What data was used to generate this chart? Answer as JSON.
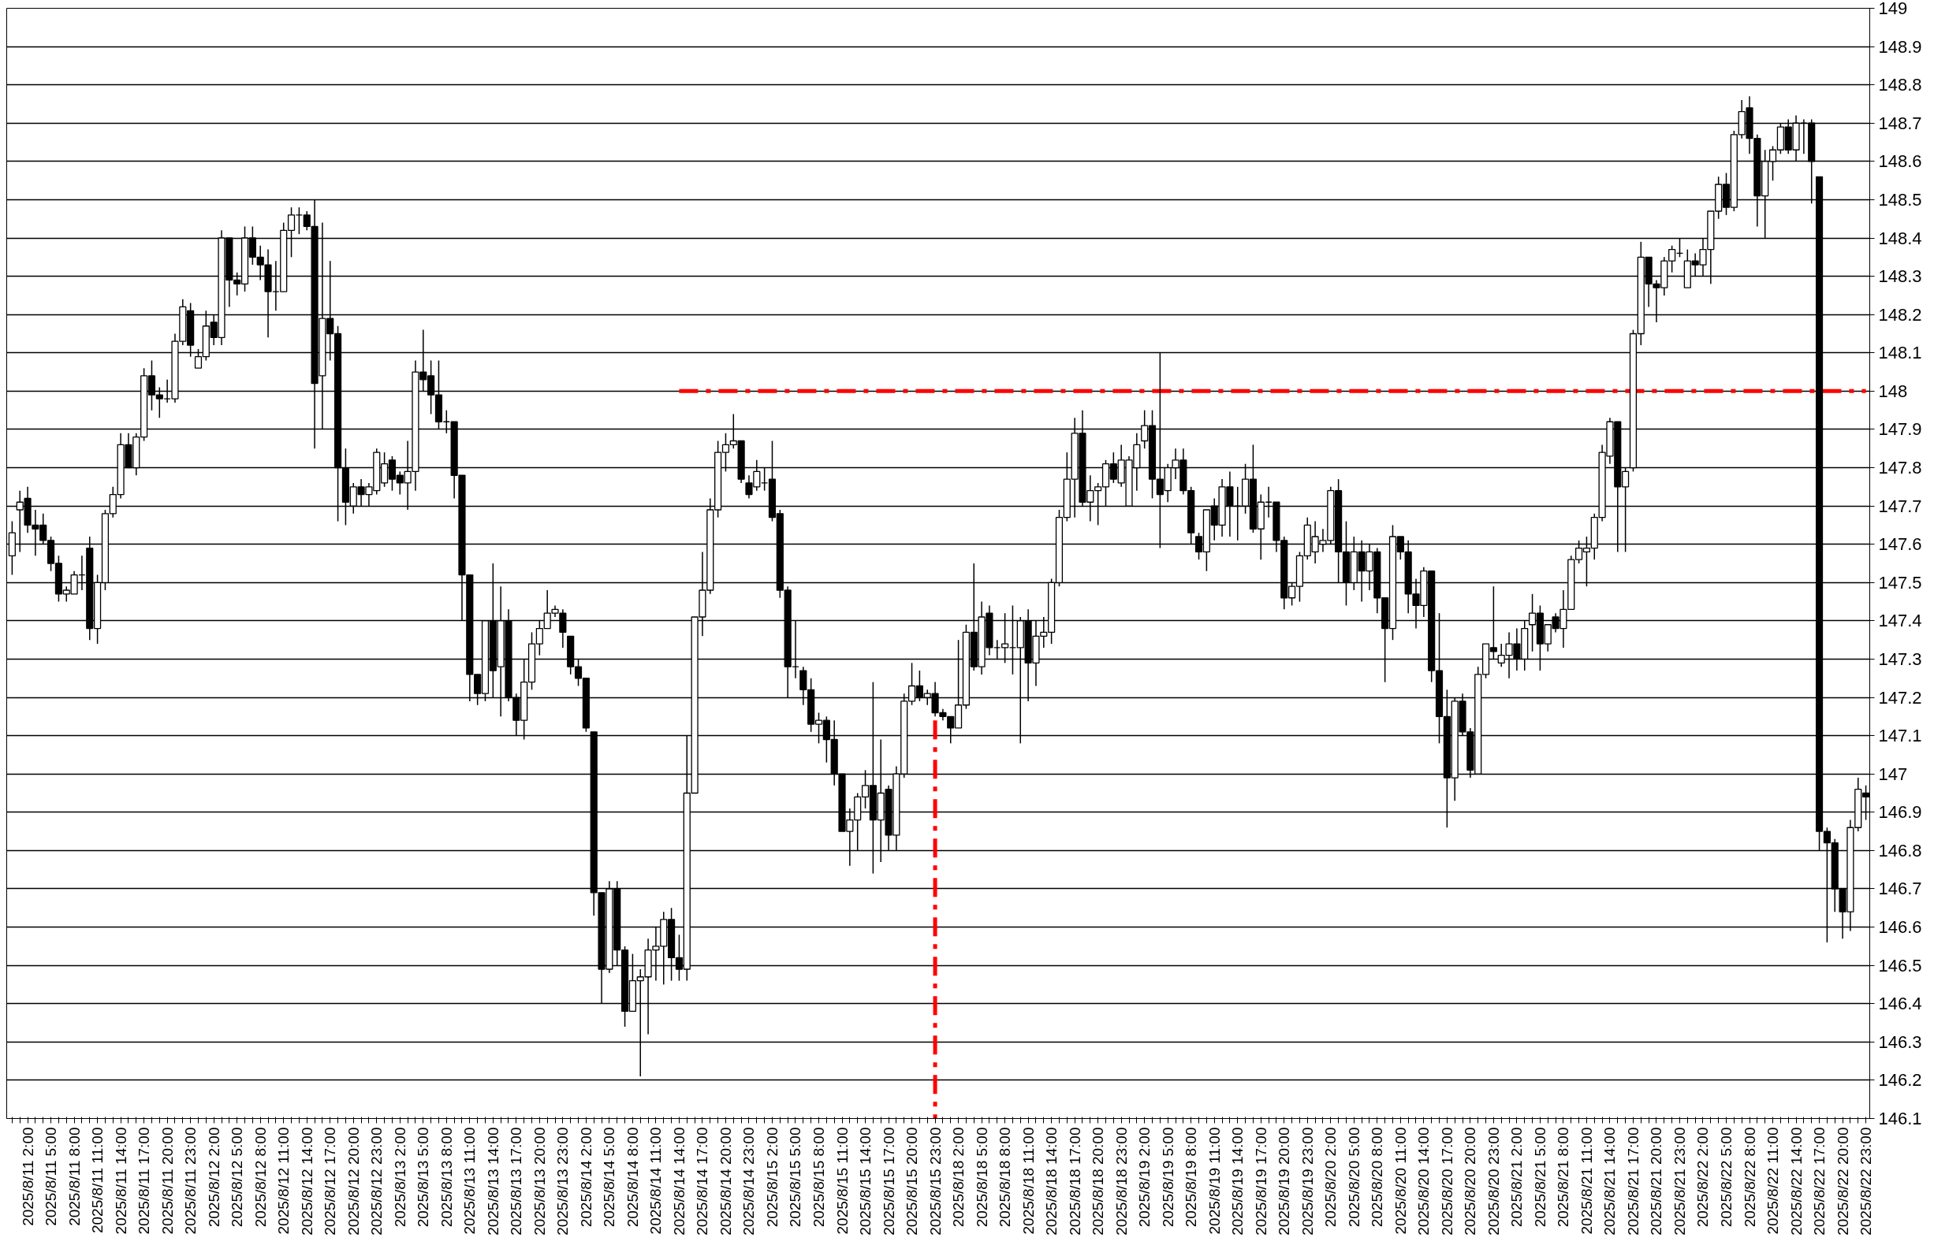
{
  "chart_data": {
    "type": "candlestick",
    "color": "#000000",
    "grid": "y",
    "ylim": [
      146.1,
      149
    ],
    "yticks": [
      146.1,
      146.2,
      146.3,
      146.4,
      146.5,
      146.6,
      146.7,
      146.8,
      146.9,
      147,
      147.1,
      147.2,
      147.3,
      147.4,
      147.5,
      147.6,
      147.7,
      147.8,
      147.9,
      148,
      148.1,
      148.2,
      148.3,
      148.4,
      148.5,
      148.6,
      148.7,
      148.8,
      148.9,
      149
    ],
    "categories": [
      null,
      null,
      "2025/8/11 2:00",
      null,
      null,
      "2025/8/11 5:00",
      null,
      null,
      "2025/8/11 8:00",
      null,
      null,
      "2025/8/11 11:00",
      null,
      null,
      "2025/8/11 14:00",
      null,
      null,
      "2025/8/11 17:00",
      null,
      null,
      "2025/8/11 20:00",
      null,
      null,
      "2025/8/11 23:00",
      null,
      null,
      "2025/8/12 2:00",
      null,
      null,
      "2025/8/12 5:00",
      null,
      null,
      "2025/8/12 8:00",
      null,
      null,
      "2025/8/12 11:00",
      null,
      null,
      "2025/8/12 14:00",
      null,
      null,
      "2025/8/12 17:00",
      null,
      null,
      "2025/8/12 20:00",
      null,
      null,
      "2025/8/12 23:00",
      null,
      null,
      "2025/8/13 2:00",
      null,
      null,
      "2025/8/13 5:00",
      null,
      null,
      "2025/8/13 8:00",
      null,
      null,
      "2025/8/13 11:00",
      null,
      null,
      "2025/8/13 14:00",
      null,
      null,
      "2025/8/13 17:00",
      null,
      null,
      "2025/8/13 20:00",
      null,
      null,
      "2025/8/13 23:00",
      null,
      null,
      "2025/8/14 2:00",
      null,
      null,
      "2025/8/14 5:00",
      null,
      null,
      "2025/8/14 8:00",
      null,
      null,
      "2025/8/14 11:00",
      null,
      null,
      "2025/8/14 14:00",
      null,
      null,
      "2025/8/14 17:00",
      null,
      null,
      "2025/8/14 20:00",
      null,
      null,
      "2025/8/14 23:00",
      null,
      null,
      "2025/8/15 2:00",
      null,
      null,
      "2025/8/15 5:00",
      null,
      null,
      "2025/8/15 8:00",
      null,
      null,
      "2025/8/15 11:00",
      null,
      null,
      "2025/8/15 14:00",
      null,
      null,
      "2025/8/15 17:00",
      null,
      null,
      "2025/8/15 20:00",
      null,
      null,
      "2025/8/15 23:00",
      null,
      null,
      "2025/8/18 2:00",
      null,
      null,
      "2025/8/18 5:00",
      null,
      null,
      "2025/8/18 8:00",
      null,
      null,
      "2025/8/18 11:00",
      null,
      null,
      "2025/8/18 14:00",
      null,
      null,
      "2025/8/18 17:00",
      null,
      null,
      "2025/8/18 20:00",
      null,
      null,
      "2025/8/18 23:00",
      null,
      null,
      "2025/8/19 2:00",
      null,
      null,
      "2025/8/19 5:00",
      null,
      null,
      "2025/8/19 8:00",
      null,
      null,
      "2025/8/19 11:00",
      null,
      null,
      "2025/8/19 14:00",
      null,
      null,
      "2025/8/19 17:00",
      null,
      null,
      "2025/8/19 20:00",
      null,
      null,
      "2025/8/19 23:00",
      null,
      null,
      "2025/8/20 2:00",
      null,
      null,
      "2025/8/20 5:00",
      null,
      null,
      "2025/8/20 8:00",
      null,
      null,
      "2025/8/20 11:00",
      null,
      null,
      "2025/8/20 14:00",
      null,
      null,
      "2025/8/20 17:00",
      null,
      null,
      "2025/8/20 20:00",
      null,
      null,
      "2025/8/20 23:00",
      null,
      null,
      "2025/8/21 2:00",
      null,
      null,
      "2025/8/21 5:00",
      null,
      null,
      "2025/8/21 8:00",
      null,
      null,
      "2025/8/21 11:00",
      null,
      null,
      "2025/8/21 14:00",
      null,
      null,
      "2025/8/21 17:00",
      null,
      null,
      "2025/8/21 20:00",
      null,
      null,
      "2025/8/21 23:00",
      null,
      null,
      "2025/8/22 2:00",
      null,
      null,
      "2025/8/22 5:00",
      null,
      null,
      "2025/8/22 8:00",
      null,
      null,
      "2025/8/22 11:00",
      null,
      null,
      "2025/8/22 14:00",
      null,
      null,
      "2025/8/22 17:00",
      null,
      null,
      "2025/8/22 20:00",
      null,
      null,
      "2025/8/22 23:00"
    ],
    "ohlc": [
      [
        147.57,
        147.66,
        147.52,
        147.63
      ],
      [
        147.69,
        147.74,
        147.58,
        147.71
      ],
      [
        147.72,
        147.75,
        147.63,
        147.65
      ],
      [
        147.65,
        147.69,
        147.57,
        147.64
      ],
      [
        147.65,
        147.68,
        147.6,
        147.61
      ],
      [
        147.61,
        147.62,
        147.53,
        147.55
      ],
      [
        147.55,
        147.57,
        147.45,
        147.47
      ],
      [
        147.47,
        147.49,
        147.45,
        147.48
      ],
      [
        147.47,
        147.53,
        147.47,
        147.52
      ],
      [
        147.52,
        147.57,
        147.48,
        147.52
      ],
      [
        147.59,
        147.62,
        147.35,
        147.38
      ],
      [
        147.38,
        147.52,
        147.34,
        147.5
      ],
      [
        147.5,
        147.69,
        147.48,
        147.68
      ],
      [
        147.68,
        147.75,
        147.67,
        147.73
      ],
      [
        147.73,
        147.89,
        147.72,
        147.86
      ],
      [
        147.86,
        147.89,
        147.8,
        147.8
      ],
      [
        147.8,
        147.89,
        147.78,
        147.88
      ],
      [
        147.88,
        148.06,
        147.87,
        148.04
      ],
      [
        148.04,
        148.08,
        147.95,
        147.99
      ],
      [
        147.99,
        148.01,
        147.93,
        147.98
      ],
      [
        147.98,
        148.03,
        147.97,
        147.98
      ],
      [
        147.98,
        148.15,
        147.97,
        148.13
      ],
      [
        148.13,
        148.24,
        148.12,
        148.22
      ],
      [
        148.21,
        148.23,
        148.09,
        148.12
      ],
      [
        148.06,
        148.11,
        148.06,
        148.09
      ],
      [
        148.09,
        148.21,
        148.08,
        148.17
      ],
      [
        148.18,
        148.2,
        148.12,
        148.14
      ],
      [
        148.14,
        148.42,
        148.12,
        148.4
      ],
      [
        148.4,
        148.4,
        148.22,
        148.29
      ],
      [
        148.29,
        148.31,
        148.25,
        148.28
      ],
      [
        148.28,
        148.43,
        148.26,
        148.4
      ],
      [
        148.4,
        148.43,
        148.33,
        148.35
      ],
      [
        148.35,
        148.38,
        148.29,
        148.33
      ],
      [
        148.33,
        148.37,
        148.14,
        148.26
      ],
      [
        148.26,
        148.34,
        148.21,
        148.26
      ],
      [
        148.26,
        148.44,
        148.26,
        148.42
      ],
      [
        148.42,
        148.48,
        148.35,
        148.46
      ],
      [
        148.46,
        148.48,
        148.41,
        148.46
      ],
      [
        148.46,
        148.47,
        148.42,
        148.43
      ],
      [
        148.43,
        148.5,
        147.85,
        148.02
      ],
      [
        148.04,
        148.44,
        147.9,
        148.19
      ],
      [
        148.19,
        148.34,
        148.08,
        148.15
      ],
      [
        148.15,
        148.17,
        147.66,
        147.8
      ],
      [
        147.8,
        147.85,
        147.65,
        147.71
      ],
      [
        147.7,
        147.76,
        147.68,
        147.75
      ],
      [
        147.75,
        147.77,
        147.7,
        147.73
      ],
      [
        147.73,
        147.76,
        147.7,
        147.75
      ],
      [
        147.74,
        147.85,
        147.73,
        147.84
      ],
      [
        147.76,
        147.84,
        147.75,
        147.81
      ],
      [
        147.82,
        147.83,
        147.74,
        147.77
      ],
      [
        147.78,
        147.79,
        147.73,
        147.76
      ],
      [
        147.76,
        147.87,
        147.69,
        147.79
      ],
      [
        147.79,
        148.08,
        147.74,
        148.05
      ],
      [
        148.05,
        148.16,
        148.0,
        148.03
      ],
      [
        148.04,
        148.08,
        147.94,
        147.99
      ],
      [
        147.99,
        148.08,
        147.9,
        147.92
      ],
      [
        147.92,
        147.95,
        147.89,
        147.92
      ],
      [
        147.92,
        147.92,
        147.72,
        147.78
      ],
      [
        147.78,
        147.78,
        147.4,
        147.52
      ],
      [
        147.52,
        147.52,
        147.19,
        147.26
      ],
      [
        147.26,
        147.26,
        147.18,
        147.21
      ],
      [
        147.21,
        147.4,
        147.19,
        147.4
      ],
      [
        147.4,
        147.55,
        147.2,
        147.27
      ],
      [
        147.28,
        147.49,
        147.15,
        147.4
      ],
      [
        147.4,
        147.43,
        147.19,
        147.2
      ],
      [
        147.2,
        147.21,
        147.1,
        147.14
      ],
      [
        147.14,
        147.3,
        147.09,
        147.24
      ],
      [
        147.24,
        147.37,
        147.22,
        147.34
      ],
      [
        147.34,
        147.4,
        147.31,
        147.38
      ],
      [
        147.38,
        147.48,
        147.38,
        147.42
      ],
      [
        147.42,
        147.44,
        147.41,
        147.43
      ],
      [
        147.42,
        147.43,
        147.33,
        147.37
      ],
      [
        147.36,
        147.36,
        147.26,
        147.28
      ],
      [
        147.28,
        147.3,
        147.23,
        147.25
      ],
      [
        147.25,
        147.25,
        147.11,
        147.12
      ],
      [
        147.11,
        147.11,
        146.63,
        146.69
      ],
      [
        146.69,
        146.69,
        146.4,
        146.49
      ],
      [
        146.49,
        146.72,
        146.48,
        146.7
      ],
      [
        146.7,
        146.72,
        146.5,
        146.54
      ],
      [
        146.54,
        146.55,
        146.34,
        146.38
      ],
      [
        146.38,
        146.53,
        146.38,
        146.46
      ],
      [
        146.46,
        146.49,
        146.21,
        146.47
      ],
      [
        146.47,
        146.57,
        146.32,
        146.54
      ],
      [
        146.54,
        146.6,
        146.46,
        146.55
      ],
      [
        146.55,
        146.64,
        146.45,
        146.62
      ],
      [
        146.62,
        146.65,
        146.46,
        146.52
      ],
      [
        146.52,
        146.58,
        146.46,
        146.49
      ],
      [
        146.49,
        147.1,
        146.46,
        146.95
      ],
      [
        146.95,
        147.41,
        146.95,
        147.41
      ],
      [
        147.41,
        147.58,
        147.36,
        147.48
      ],
      [
        147.48,
        147.72,
        147.47,
        147.69
      ],
      [
        147.69,
        147.87,
        147.67,
        147.84
      ],
      [
        147.84,
        147.89,
        147.79,
        147.86
      ],
      [
        147.86,
        147.94,
        147.85,
        147.87
      ],
      [
        147.87,
        147.87,
        147.76,
        147.77
      ],
      [
        147.76,
        147.78,
        147.72,
        147.73
      ],
      [
        147.75,
        147.82,
        147.74,
        147.79
      ],
      [
        147.76,
        147.8,
        147.74,
        147.76
      ],
      [
        147.77,
        147.87,
        147.66,
        147.67
      ],
      [
        147.68,
        147.69,
        147.46,
        147.48
      ],
      [
        147.48,
        147.49,
        147.2,
        147.28
      ],
      [
        147.28,
        147.4,
        147.25,
        147.28
      ],
      [
        147.27,
        147.28,
        147.18,
        147.22
      ],
      [
        147.22,
        147.25,
        147.11,
        147.13
      ],
      [
        147.13,
        147.16,
        147.08,
        147.14
      ],
      [
        147.14,
        147.15,
        147.03,
        147.09
      ],
      [
        147.09,
        147.14,
        146.97,
        147.0
      ],
      [
        147.0,
        147.0,
        146.85,
        146.85
      ],
      [
        146.85,
        146.91,
        146.76,
        146.88
      ],
      [
        146.88,
        146.95,
        146.8,
        146.94
      ],
      [
        146.94,
        147.01,
        146.91,
        146.97
      ],
      [
        146.97,
        147.24,
        146.74,
        146.88
      ],
      [
        146.88,
        147.09,
        146.77,
        146.95
      ],
      [
        146.96,
        146.97,
        146.8,
        146.84
      ],
      [
        146.84,
        147.02,
        146.8,
        147.0
      ],
      [
        147.0,
        147.21,
        146.99,
        147.19
      ],
      [
        147.19,
        147.29,
        147.18,
        147.23
      ],
      [
        147.23,
        147.27,
        147.19,
        147.2
      ],
      [
        147.2,
        147.22,
        147.18,
        147.21
      ],
      [
        147.21,
        147.24,
        147.15,
        147.16
      ],
      [
        147.16,
        147.17,
        147.14,
        147.15
      ],
      [
        147.15,
        147.15,
        147.08,
        147.12
      ],
      [
        147.12,
        147.35,
        147.12,
        147.18
      ],
      [
        147.18,
        147.39,
        147.17,
        147.37
      ],
      [
        147.37,
        147.55,
        147.27,
        147.28
      ],
      [
        147.28,
        147.45,
        147.26,
        147.41
      ],
      [
        147.42,
        147.44,
        147.31,
        147.33
      ],
      [
        147.33,
        147.35,
        147.3,
        147.33
      ],
      [
        147.33,
        147.42,
        147.29,
        147.34
      ],
      [
        147.33,
        147.44,
        147.26,
        147.33
      ],
      [
        147.33,
        147.41,
        147.08,
        147.4
      ],
      [
        147.4,
        147.43,
        147.19,
        147.29
      ],
      [
        147.29,
        147.4,
        147.23,
        147.36
      ],
      [
        147.36,
        147.41,
        147.33,
        147.37
      ],
      [
        147.37,
        147.51,
        147.34,
        147.5
      ],
      [
        147.5,
        147.69,
        147.49,
        147.67
      ],
      [
        147.67,
        147.84,
        147.66,
        147.77
      ],
      [
        147.77,
        147.93,
        147.67,
        147.89
      ],
      [
        147.89,
        147.95,
        147.7,
        147.71
      ],
      [
        147.71,
        147.78,
        147.66,
        147.74
      ],
      [
        147.74,
        147.76,
        147.65,
        147.75
      ],
      [
        147.75,
        147.82,
        147.7,
        147.81
      ],
      [
        147.81,
        147.84,
        147.76,
        147.77
      ],
      [
        147.76,
        147.86,
        147.75,
        147.82
      ],
      [
        147.7,
        147.83,
        147.7,
        147.82
      ],
      [
        147.8,
        147.89,
        147.74,
        147.86
      ],
      [
        147.87,
        147.95,
        147.85,
        147.91
      ],
      [
        147.91,
        147.95,
        147.72,
        147.77
      ],
      [
        147.77,
        148.1,
        147.59,
        147.73
      ],
      [
        147.74,
        147.81,
        147.71,
        147.8
      ],
      [
        147.8,
        147.85,
        147.77,
        147.82
      ],
      [
        147.82,
        147.85,
        147.73,
        147.74
      ],
      [
        147.74,
        147.75,
        147.6,
        147.63
      ],
      [
        147.62,
        147.63,
        147.56,
        147.58
      ],
      [
        147.58,
        147.69,
        147.53,
        147.69
      ],
      [
        147.7,
        147.72,
        147.61,
        147.65
      ],
      [
        147.65,
        147.77,
        147.62,
        147.75
      ],
      [
        147.75,
        147.79,
        147.62,
        147.7
      ],
      [
        147.7,
        147.75,
        147.61,
        147.7
      ],
      [
        147.7,
        147.81,
        147.68,
        147.77
      ],
      [
        147.77,
        147.86,
        147.63,
        147.64
      ],
      [
        147.64,
        147.73,
        147.56,
        147.71
      ],
      [
        147.71,
        147.75,
        147.67,
        147.71
      ],
      [
        147.71,
        147.71,
        147.58,
        147.61
      ],
      [
        147.61,
        147.62,
        147.43,
        147.46
      ],
      [
        147.46,
        147.5,
        147.44,
        147.49
      ],
      [
        147.49,
        147.58,
        147.45,
        147.57
      ],
      [
        147.57,
        147.67,
        147.56,
        147.65
      ],
      [
        147.58,
        147.66,
        147.55,
        147.62
      ],
      [
        147.6,
        147.64,
        147.58,
        147.61
      ],
      [
        147.61,
        147.75,
        147.6,
        147.74
      ],
      [
        147.74,
        147.77,
        147.5,
        147.58
      ],
      [
        147.58,
        147.66,
        147.44,
        147.5
      ],
      [
        147.5,
        147.62,
        147.48,
        147.58
      ],
      [
        147.58,
        147.61,
        147.45,
        147.53
      ],
      [
        147.53,
        147.6,
        147.48,
        147.58
      ],
      [
        147.58,
        147.59,
        147.42,
        147.46
      ],
      [
        147.46,
        147.46,
        147.24,
        147.38
      ],
      [
        147.38,
        147.65,
        147.35,
        147.62
      ],
      [
        147.62,
        147.62,
        147.56,
        147.58
      ],
      [
        147.58,
        147.61,
        147.42,
        147.47
      ],
      [
        147.47,
        147.51,
        147.38,
        147.44
      ],
      [
        147.44,
        147.54,
        147.41,
        147.53
      ],
      [
        147.53,
        147.53,
        147.24,
        147.27
      ],
      [
        147.27,
        147.42,
        147.08,
        147.15
      ],
      [
        147.15,
        147.22,
        146.86,
        146.99
      ],
      [
        146.99,
        147.2,
        146.93,
        147.19
      ],
      [
        147.19,
        147.21,
        147.1,
        147.11
      ],
      [
        147.11,
        147.12,
        146.99,
        147.01
      ],
      [
        147.0,
        147.28,
        147.0,
        147.26
      ],
      [
        147.26,
        147.34,
        147.25,
        147.34
      ],
      [
        147.33,
        147.49,
        147.3,
        147.32
      ],
      [
        147.29,
        147.34,
        147.28,
        147.31
      ],
      [
        147.31,
        147.37,
        147.25,
        147.34
      ],
      [
        147.34,
        147.38,
        147.27,
        147.3
      ],
      [
        147.3,
        147.4,
        147.27,
        147.38
      ],
      [
        147.39,
        147.47,
        147.32,
        147.42
      ],
      [
        147.42,
        147.44,
        147.27,
        147.34
      ],
      [
        147.34,
        147.39,
        147.32,
        147.39
      ],
      [
        147.41,
        147.42,
        147.37,
        147.38
      ],
      [
        147.38,
        147.48,
        147.33,
        147.43
      ],
      [
        147.43,
        147.57,
        147.43,
        147.56
      ],
      [
        147.56,
        147.61,
        147.55,
        147.59
      ],
      [
        147.58,
        147.62,
        147.49,
        147.59
      ],
      [
        147.59,
        147.68,
        147.56,
        147.67
      ],
      [
        147.67,
        147.86,
        147.66,
        147.84
      ],
      [
        147.83,
        147.93,
        147.81,
        147.92
      ],
      [
        147.92,
        147.92,
        147.58,
        147.75
      ],
      [
        147.75,
        147.8,
        147.58,
        147.79
      ],
      [
        147.8,
        148.16,
        147.79,
        148.15
      ],
      [
        148.15,
        148.39,
        148.12,
        148.35
      ],
      [
        148.35,
        148.35,
        148.22,
        148.28
      ],
      [
        148.28,
        148.29,
        148.18,
        148.27
      ],
      [
        148.27,
        148.35,
        148.25,
        148.34
      ],
      [
        148.34,
        148.38,
        148.31,
        148.37
      ],
      [
        148.36,
        148.4,
        148.35,
        148.36
      ],
      [
        148.27,
        148.37,
        148.27,
        148.34
      ],
      [
        148.34,
        148.36,
        148.3,
        148.33
      ],
      [
        148.33,
        148.4,
        148.3,
        148.37
      ],
      [
        148.37,
        148.47,
        148.28,
        148.47
      ],
      [
        148.47,
        148.56,
        148.45,
        148.54
      ],
      [
        148.54,
        148.57,
        148.46,
        148.48
      ],
      [
        148.48,
        148.68,
        148.47,
        148.67
      ],
      [
        148.67,
        148.76,
        148.66,
        148.73
      ],
      [
        148.74,
        148.77,
        148.62,
        148.66
      ],
      [
        148.66,
        148.67,
        148.43,
        148.51
      ],
      [
        148.51,
        148.63,
        148.4,
        148.6
      ],
      [
        148.6,
        148.64,
        148.55,
        148.63
      ],
      [
        148.63,
        148.7,
        148.62,
        148.69
      ],
      [
        148.69,
        148.71,
        148.62,
        148.63
      ],
      [
        148.63,
        148.72,
        148.6,
        148.7
      ],
      [
        148.7,
        148.71,
        148.62,
        148.7
      ],
      [
        148.7,
        148.71,
        148.49,
        148.6
      ],
      [
        148.56,
        148.56,
        146.8,
        146.85
      ],
      [
        146.85,
        146.86,
        146.56,
        146.82
      ],
      [
        146.82,
        146.83,
        146.64,
        146.7
      ],
      [
        146.7,
        146.7,
        146.57,
        146.64
      ],
      [
        146.64,
        146.88,
        146.59,
        146.86
      ],
      [
        146.86,
        146.99,
        146.85,
        146.96
      ],
      [
        146.95,
        146.97,
        146.88,
        146.94
      ]
    ],
    "series": [
      {
        "type": "line",
        "color": "#ff0000",
        "line_style": "dashed",
        "x": [
          "2025/8/14 14:00",
          "2025/8/22 23:00"
        ],
        "values": [
          148,
          148
        ]
      },
      {
        "type": "line",
        "color": "#ff0000",
        "line_style": "dashed",
        "x": [
          "2025/8/15 23:00",
          "2025/8/15 23:00"
        ],
        "values": [
          147.14,
          146.1
        ]
      }
    ]
  }
}
